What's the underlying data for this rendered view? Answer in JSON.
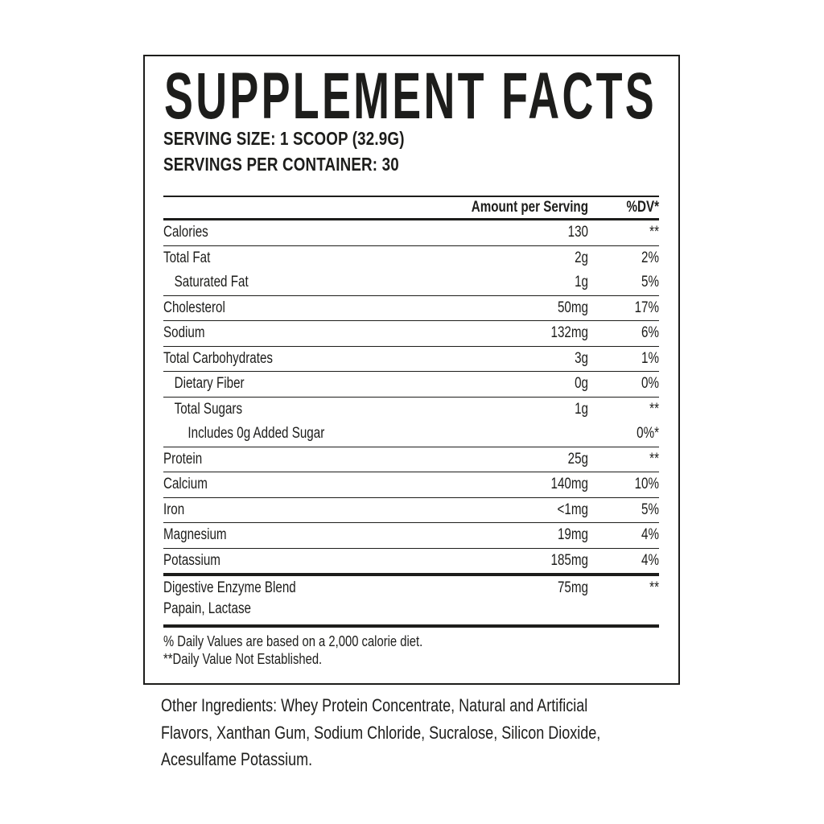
{
  "label": {
    "title": "SUPPLEMENT FACTS",
    "serving_size": "SERVING SIZE: 1 SCOOP (32.9G)",
    "servings_per_container": "SERVINGS PER CONTAINER: 30",
    "columns": {
      "amount": "Amount per Serving",
      "dv": "%DV*"
    },
    "rows": [
      {
        "name": "Calories",
        "amount": "130",
        "dv": "**",
        "indent": 0,
        "rule": "thin"
      },
      {
        "name": "Total Fat",
        "amount": "2g",
        "dv": "2%",
        "indent": 0,
        "rule": "none"
      },
      {
        "name": "Saturated Fat",
        "amount": "1g",
        "dv": "5%",
        "indent": 1,
        "rule": "thin"
      },
      {
        "name": "Cholesterol",
        "amount": "50mg",
        "dv": "17%",
        "indent": 0,
        "rule": "thin"
      },
      {
        "name": "Sodium",
        "amount": "132mg",
        "dv": "6%",
        "indent": 0,
        "rule": "thin"
      },
      {
        "name": "Total Carbohydrates",
        "amount": "3g",
        "dv": "1%",
        "indent": 0,
        "rule": "thin"
      },
      {
        "name": "Dietary Fiber",
        "amount": "0g",
        "dv": "0%",
        "indent": 1,
        "rule": "thin"
      },
      {
        "name": "Total Sugars",
        "amount": "1g",
        "dv": "**",
        "indent": 1,
        "rule": "none"
      },
      {
        "name": "Includes 0g Added Sugar",
        "amount": "",
        "dv": "0%*",
        "indent": 2,
        "rule": "thin"
      },
      {
        "name": "Protein",
        "amount": "25g",
        "dv": "**",
        "indent": 0,
        "rule": "thin"
      },
      {
        "name": "Calcium",
        "amount": "140mg",
        "dv": "10%",
        "indent": 0,
        "rule": "thin"
      },
      {
        "name": "Iron",
        "amount": "<1mg",
        "dv": "5%",
        "indent": 0,
        "rule": "thin"
      },
      {
        "name": "Magnesium",
        "amount": "19mg",
        "dv": "4%",
        "indent": 0,
        "rule": "thin"
      },
      {
        "name": "Potassium",
        "amount": "185mg",
        "dv": "4%",
        "indent": 0,
        "rule": "thick"
      },
      {
        "name": "Digestive Enzyme Blend",
        "amount": "75mg",
        "dv": "**",
        "indent": 0,
        "rule": "thick",
        "sub": "Papain, Lactase"
      }
    ],
    "footnotes": [
      "% Daily Values are based on a 2,000 calorie diet.",
      "**Daily Value Not Established."
    ]
  },
  "other_ingredients": {
    "lines": [
      "Other Ingredients: Whey Protein Concentrate, Natural and Artificial",
      "Flavors, Xanthan Gum, Sodium Chloride, Sucralose, Silicon Dioxide,",
      "Acesulfame Potassium."
    ]
  },
  "colors": {
    "ink": "#1d1d1b",
    "background": "#ffffff"
  }
}
